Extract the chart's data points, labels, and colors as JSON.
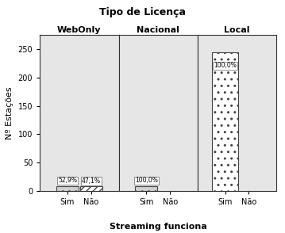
{
  "title": "Tipo de Licença",
  "xlabel": "Streaming funciona",
  "ylabel": "Nº Estações",
  "groups": [
    "WebOnly",
    "Nacional",
    "Local"
  ],
  "values_sim": [
    9,
    9,
    245
  ],
  "values_nao": [
    8,
    0,
    0
  ],
  "labels_sim": [
    "52,9%",
    "100,0%",
    "100,0%"
  ],
  "labels_nao": [
    "47,1%",
    null,
    null
  ],
  "ylim": [
    0,
    275
  ],
  "yticks": [
    0,
    50,
    100,
    150,
    200,
    250
  ],
  "panel_color": "#e6e6e6",
  "bar_edgecolor": "#444444",
  "sim_facecolor": "#d0d0d0",
  "nao_facecolor": "#ffffff",
  "sim_hatch": "..",
  "nao_hatch": "////",
  "label_fontsize": 5.5,
  "tick_fontsize": 7,
  "ylabel_fontsize": 8,
  "xlabel_fontsize": 8,
  "group_label_fontsize": 8,
  "title_fontsize": 9,
  "bar_width": 0.28,
  "local_bar_facecolor": "#ffffff",
  "local_bar_hatch": ".."
}
